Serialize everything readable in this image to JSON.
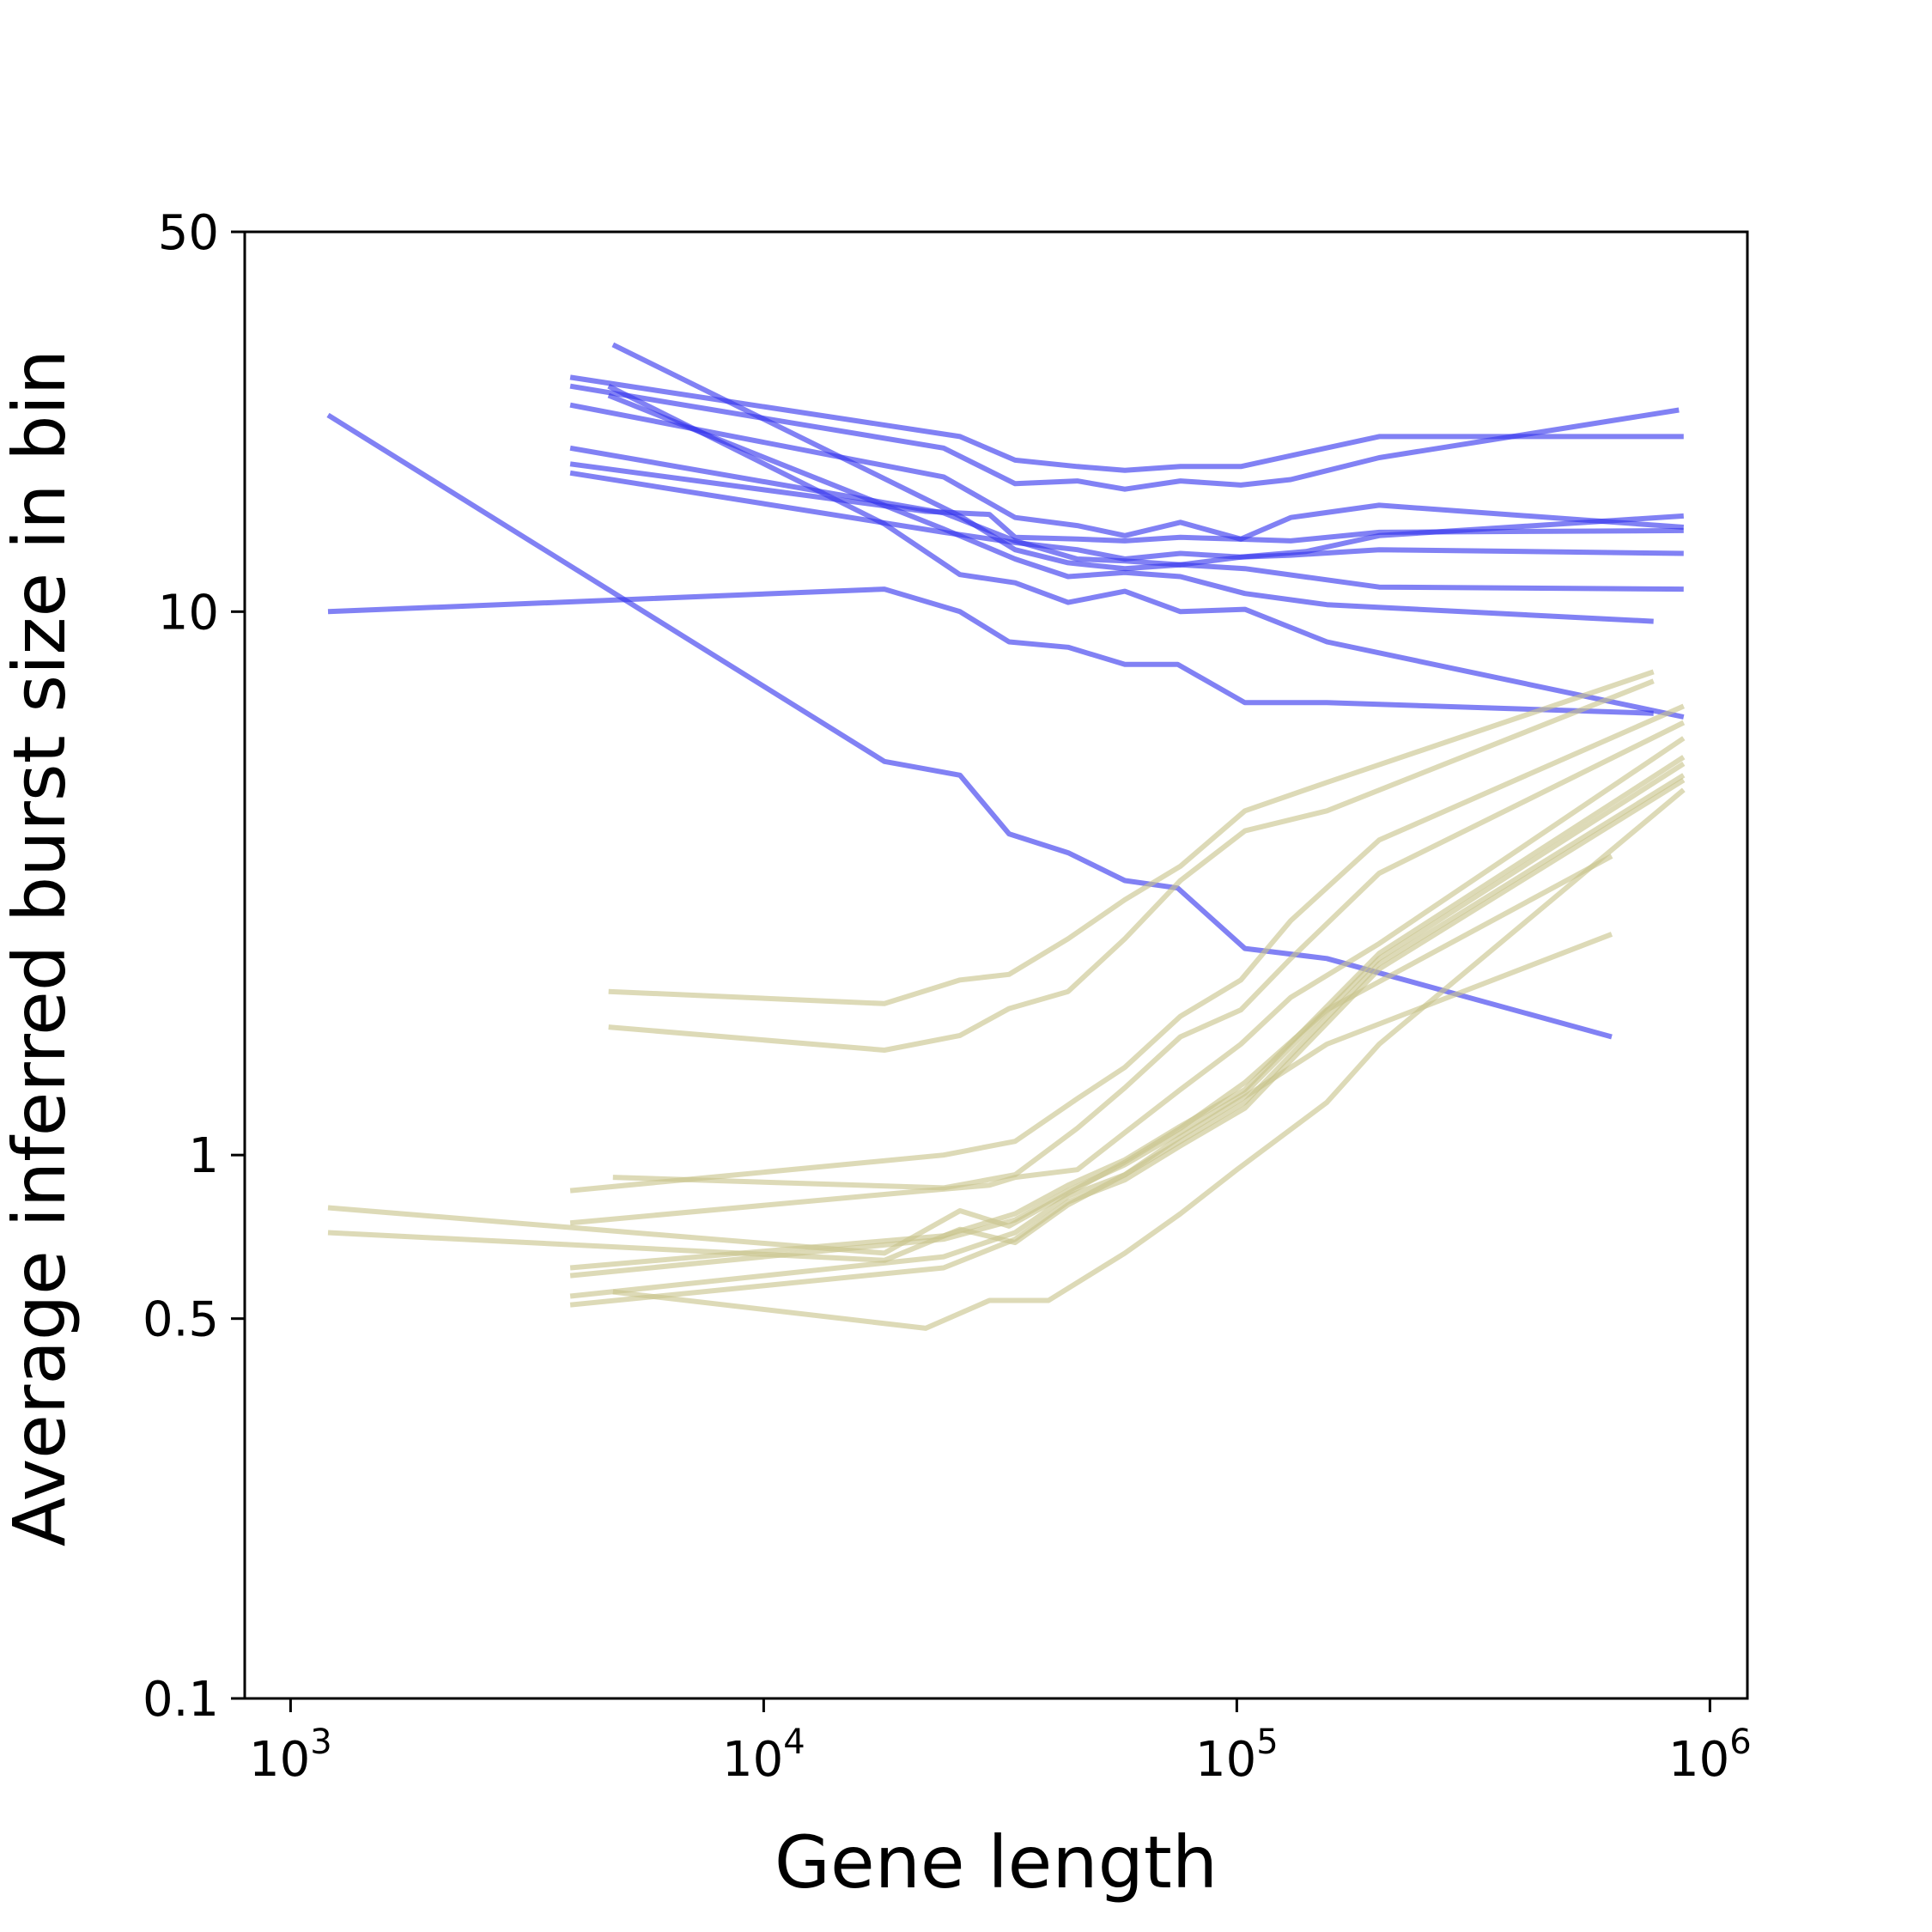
{
  "chart_data": {
    "type": "line",
    "title": "",
    "xlabel": "Gene length",
    "ylabel": "Average inferred burst size in bin",
    "x_scale": "log",
    "y_scale": "log",
    "xlim": [
      800,
      1200000
    ],
    "ylim": [
      0.1,
      50
    ],
    "x_ticks": [
      {
        "value": 1000,
        "base": "10",
        "exp": "3"
      },
      {
        "value": 10000,
        "base": "10",
        "exp": "4"
      },
      {
        "value": 100000,
        "base": "10",
        "exp": "5"
      },
      {
        "value": 1000000,
        "base": "10",
        "exp": "6"
      }
    ],
    "y_ticks": [
      {
        "value": 0.1,
        "label": "0.1"
      },
      {
        "value": 0.5,
        "label": "0.5"
      },
      {
        "value": 1,
        "label": "1"
      },
      {
        "value": 10,
        "label": "10"
      },
      {
        "value": 50,
        "label": "50"
      }
    ],
    "grid": false,
    "legend": "none",
    "colors": {
      "group_a": "#3333ee",
      "group_b": "#c8c48a"
    },
    "series": [
      {
        "group": "group_a",
        "x": [
          1200,
          18000,
          26000,
          33000,
          44000,
          58000,
          75000,
          104000,
          155000,
          620000
        ],
        "y": [
          23,
          5.3,
          5.0,
          3.9,
          3.6,
          3.2,
          3.1,
          2.4,
          2.3,
          1.65
        ]
      },
      {
        "group": "group_a",
        "x": [
          1200,
          18000,
          26000,
          33000,
          44000,
          58000,
          75000,
          104000,
          155000,
          760000
        ],
        "y": [
          10,
          11,
          10,
          8.8,
          8.6,
          8.0,
          8.0,
          6.8,
          6.8,
          6.5
        ]
      },
      {
        "group": "group_a",
        "x": [
          3900,
          26000,
          34000,
          46000,
          58000,
          76000,
          102000,
          200000,
          880000
        ],
        "y": [
          27,
          21,
          19,
          18.5,
          18.2,
          18.5,
          18.5,
          21,
          21
        ]
      },
      {
        "group": "group_a",
        "x": [
          3900,
          24000,
          34000,
          46000,
          58000,
          76000,
          102000,
          130000,
          200000,
          860000
        ],
        "y": [
          26,
          20,
          17.2,
          17.4,
          16.8,
          17.4,
          17.1,
          17.5,
          19.2,
          23.5
        ]
      },
      {
        "group": "group_a",
        "x": [
          3900,
          24000,
          34000,
          46000,
          58000,
          76000,
          102000,
          130000,
          200000,
          880000
        ],
        "y": [
          24,
          17.7,
          14.9,
          14.4,
          13.8,
          14.6,
          13.6,
          14.9,
          15.7,
          14.3
        ]
      },
      {
        "group": "group_a",
        "x": [
          3900,
          24000,
          34000,
          46000,
          58000,
          76000,
          102000,
          140000,
          200000,
          880000
        ],
        "y": [
          20,
          15.2,
          13.5,
          12.5,
          12.4,
          12.2,
          12.6,
          12.9,
          13.8,
          15.0
        ]
      },
      {
        "group": "group_a",
        "x": [
          3900,
          22000,
          30000,
          34000,
          46000,
          58000,
          76000,
          100000,
          130000,
          200000,
          880000
        ],
        "y": [
          18.7,
          15.3,
          15.1,
          13.7,
          13.6,
          13.5,
          13.7,
          13.6,
          13.5,
          14.0,
          14.1
        ]
      },
      {
        "group": "group_a",
        "x": [
          3900,
          24000,
          34000,
          46000,
          58000,
          76000,
          102000,
          130000,
          200000,
          880000
        ],
        "y": [
          18.0,
          14.0,
          13.4,
          13.0,
          12.5,
          12.8,
          12.6,
          12.7,
          13.0,
          12.8
        ]
      },
      {
        "group": "group_a",
        "x": [
          4800,
          26000,
          34000,
          44000,
          58000,
          76000,
          104000,
          200000,
          880000
        ],
        "y": [
          31,
          15,
          13.0,
          12.3,
          12.0,
          12.2,
          12.0,
          11.1,
          11.0
        ]
      },
      {
        "group": "group_a",
        "x": [
          4700,
          24000,
          34000,
          44000,
          58000,
          76000,
          104000,
          155000,
          760000
        ],
        "y": [
          25,
          14.2,
          12.5,
          11.6,
          11.8,
          11.6,
          10.8,
          10.3,
          9.6
        ]
      },
      {
        "group": "group_a",
        "x": [
          4700,
          18000,
          26000,
          34000,
          44000,
          58000,
          76000,
          104000,
          155000,
          880000
        ],
        "y": [
          26,
          14.5,
          11.7,
          11.3,
          10.4,
          10.9,
          10.0,
          10.1,
          8.8,
          6.4
        ]
      },
      {
        "group": "group_b",
        "x": [
          4700,
          18000,
          26000,
          33000,
          44000,
          58000,
          76000,
          104000,
          155000,
          760000
        ],
        "y": [
          2.0,
          1.9,
          2.1,
          2.15,
          2.5,
          2.95,
          3.4,
          4.3,
          4.85,
          7.75
        ]
      },
      {
        "group": "group_b",
        "x": [
          4700,
          18000,
          26000,
          33000,
          44000,
          58000,
          76000,
          104000,
          155000,
          760000
        ],
        "y": [
          1.72,
          1.56,
          1.66,
          1.86,
          2.0,
          2.5,
          3.2,
          3.95,
          4.3,
          7.45
        ]
      },
      {
        "group": "group_b",
        "x": [
          3900,
          24000,
          34000,
          46000,
          58000,
          76000,
          102000,
          130000,
          200000,
          880000
        ],
        "y": [
          0.86,
          1.0,
          1.06,
          1.27,
          1.45,
          1.8,
          2.1,
          2.7,
          3.8,
          6.7
        ]
      },
      {
        "group": "group_b",
        "x": [
          4800,
          24000,
          34000,
          46000,
          58000,
          76000,
          102000,
          130000,
          200000,
          880000
        ],
        "y": [
          0.91,
          0.87,
          0.92,
          1.12,
          1.33,
          1.65,
          1.85,
          2.3,
          3.3,
          6.25
        ]
      },
      {
        "group": "group_b",
        "x": [
          3900,
          22000,
          30000,
          34000,
          46000,
          58000,
          76000,
          102000,
          130000,
          200000,
          880000
        ],
        "y": [
          0.75,
          0.86,
          0.88,
          0.91,
          0.94,
          1.1,
          1.32,
          1.6,
          1.95,
          2.45,
          5.85
        ]
      },
      {
        "group": "group_b",
        "x": [
          1200,
          18000,
          26000,
          33000,
          44000,
          58000,
          76000,
          104000,
          155000,
          620000
        ],
        "y": [
          0.8,
          0.66,
          0.79,
          0.74,
          0.85,
          0.97,
          1.12,
          1.36,
          1.85,
          3.55
        ]
      },
      {
        "group": "group_b",
        "x": [
          1200,
          18000,
          26000,
          34000,
          44000,
          58000,
          76000,
          104000,
          155000,
          620000
        ],
        "y": [
          0.72,
          0.64,
          0.73,
          0.69,
          0.81,
          0.92,
          1.08,
          1.28,
          1.6,
          2.55
        ]
      },
      {
        "group": "group_b",
        "x": [
          3900,
          24000,
          34000,
          44000,
          58000,
          76000,
          104000,
          200000,
          880000
        ],
        "y": [
          0.62,
          0.71,
          0.78,
          0.88,
          0.98,
          1.13,
          1.32,
          2.35,
          5.4
        ]
      },
      {
        "group": "group_b",
        "x": [
          3900,
          24000,
          34000,
          44000,
          58000,
          76000,
          104000,
          200000,
          880000
        ],
        "y": [
          0.6,
          0.7,
          0.76,
          0.86,
          0.96,
          1.1,
          1.3,
          2.3,
          5.25
        ]
      },
      {
        "group": "group_b",
        "x": [
          3900,
          24000,
          34000,
          44000,
          58000,
          76000,
          104000,
          200000,
          880000
        ],
        "y": [
          0.55,
          0.65,
          0.72,
          0.84,
          0.92,
          1.06,
          1.25,
          2.25,
          5.0
        ]
      },
      {
        "group": "group_b",
        "x": [
          3900,
          24000,
          34000,
          44000,
          58000,
          76000,
          104000,
          200000,
          880000
        ],
        "y": [
          0.53,
          0.62,
          0.7,
          0.82,
          0.9,
          1.04,
          1.22,
          2.2,
          4.9
        ]
      },
      {
        "group": "group_b",
        "x": [
          4800,
          22000,
          30000,
          40000,
          58000,
          76000,
          100000,
          155000,
          200000,
          880000
        ],
        "y": [
          0.56,
          0.48,
          0.54,
          0.54,
          0.66,
          0.78,
          0.94,
          1.25,
          1.6,
          4.7
        ]
      }
    ]
  }
}
